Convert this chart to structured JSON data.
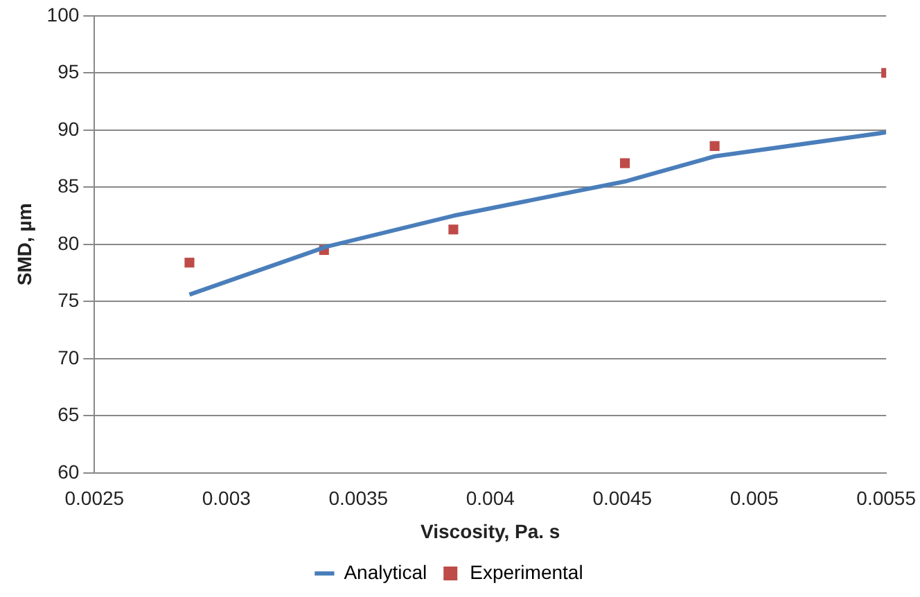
{
  "chart_data": {
    "type": "line",
    "xlabel": "Viscosity, Pa. s",
    "ylabel": "SMD, µm",
    "xlim": [
      0.0025,
      0.0055
    ],
    "xticks": [
      0.0025,
      0.003,
      0.0035,
      0.004,
      0.0045,
      0.005,
      0.0055
    ],
    "ylim": [
      60,
      100
    ],
    "yticks": [
      60,
      65,
      70,
      75,
      80,
      85,
      90,
      95,
      100
    ],
    "grid": "y",
    "legend": "bottom",
    "series": [
      {
        "name": "Analytical",
        "color": "#4a7ebb",
        "marker": "none",
        "x": [
          0.00286,
          0.00338,
          0.00386,
          0.00451,
          0.00485,
          0.0055
        ],
        "values": [
          75.6,
          79.8,
          82.5,
          85.5,
          87.7,
          89.8
        ]
      },
      {
        "name": "Experimental",
        "type": "scatter",
        "color": "#be4b48",
        "marker": "square",
        "x": [
          0.00286,
          0.00337,
          0.00386,
          0.00451,
          0.00485,
          0.0055
        ],
        "values": [
          78.4,
          79.5,
          81.3,
          87.1,
          88.6,
          95.0
        ]
      }
    ]
  }
}
